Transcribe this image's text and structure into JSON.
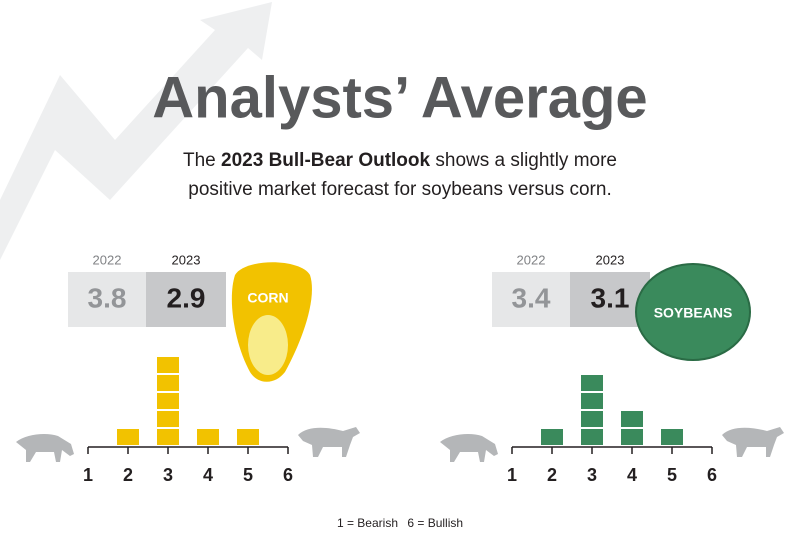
{
  "header": {
    "title": "Analysts’ Average",
    "subtitle": [
      "The",
      "2023 Bull-Bear Outlook",
      "shows a slightly more",
      "positive market forecast for soybeans versus corn."
    ]
  },
  "footnote": [
    "1 = Bearish",
    "6 = Bullish"
  ],
  "chart_data": [
    {
      "type": "bar",
      "name": "CORN",
      "color": "#f2c200",
      "categories": [
        "1",
        "2",
        "3",
        "4",
        "5",
        "6"
      ],
      "values": [
        0,
        1,
        5,
        1,
        1,
        0
      ],
      "years": [
        "2022",
        "2023"
      ],
      "averages": [
        3.8,
        2.9
      ]
    },
    {
      "type": "bar",
      "name": "SOYBEANS",
      "color": "#3a8a5c",
      "categories": [
        "1",
        "2",
        "3",
        "4",
        "5",
        "6"
      ],
      "values": [
        0,
        1,
        4,
        2,
        1,
        0
      ],
      "years": [
        "2022",
        "2023"
      ],
      "averages": [
        3.4,
        3.1
      ]
    }
  ]
}
